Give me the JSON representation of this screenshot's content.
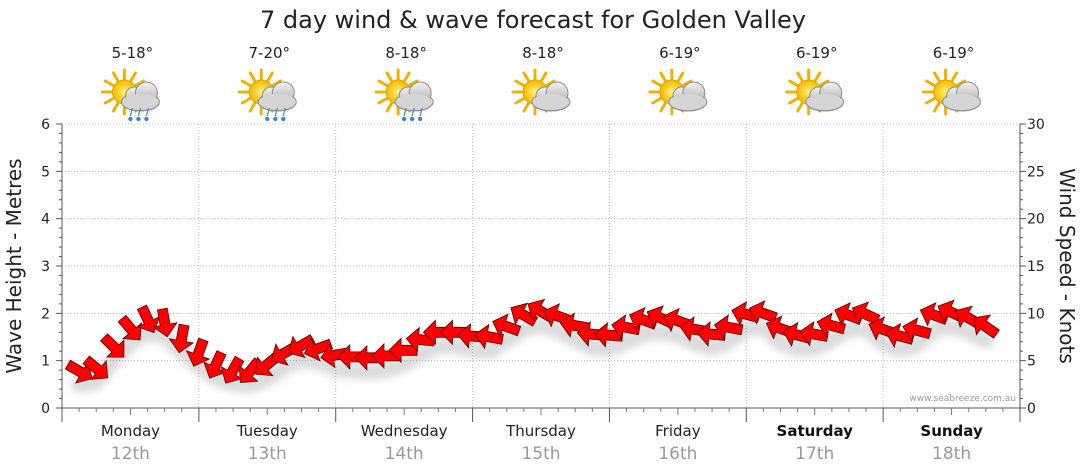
{
  "chart_data": {
    "type": "line",
    "title": "7 day wind & wave forecast for Golden Valley",
    "ylabel_left": "Wave Height - Metres",
    "ylabel_right": "Wind Speed - Knots",
    "ylim_left": [
      0,
      6
    ],
    "ylim_right": [
      0,
      30
    ],
    "yticks_left": [
      "0",
      "1",
      "2",
      "3",
      "4",
      "5",
      "6"
    ],
    "yticks_right": [
      "0",
      "5",
      "10",
      "15",
      "20",
      "25",
      "30"
    ],
    "grid": true,
    "days": [
      {
        "day": "Monday",
        "date": "12th",
        "weekend": false,
        "temp": "5-18°",
        "weather": "partly-cloudy-showers"
      },
      {
        "day": "Tuesday",
        "date": "13th",
        "weekend": false,
        "temp": "7-20°",
        "weather": "partly-cloudy-showers"
      },
      {
        "day": "Wednesday",
        "date": "14th",
        "weekend": false,
        "temp": "8-18°",
        "weather": "partly-cloudy-showers"
      },
      {
        "day": "Thursday",
        "date": "15th",
        "weekend": false,
        "temp": "8-18°",
        "weather": "partly-cloudy"
      },
      {
        "day": "Friday",
        "date": "16th",
        "weekend": false,
        "temp": "6-19°",
        "weather": "partly-cloudy"
      },
      {
        "day": "Saturday",
        "date": "17th",
        "weekend": true,
        "temp": "6-19°",
        "weather": "partly-cloudy"
      },
      {
        "day": "Sunday",
        "date": "18th",
        "weekend": true,
        "temp": "6-19°",
        "weather": "partly-cloudy"
      }
    ],
    "series": [
      {
        "name": "",
        "unit": "knots",
        "color": "#ff0000",
        "marker": "wind-direction-arrow",
        "x_step_hours": 3,
        "values": [
          3.9,
          4.2,
          6.5,
          8.4,
          9.4,
          9.1,
          7.4,
          5.9,
          4.6,
          4.0,
          3.9,
          4.6,
          5.8,
          6.6,
          6.3,
          5.6,
          5.4,
          5.3,
          5.5,
          6.1,
          7.2,
          8.0,
          8.0,
          7.6,
          7.5,
          8.6,
          9.8,
          10.2,
          9.7,
          8.7,
          7.8,
          7.7,
          8.5,
          9.3,
          9.5,
          9.2,
          8.3,
          7.8,
          8.5,
          9.9,
          10.0,
          8.4,
          7.7,
          7.8,
          8.7,
          9.8,
          9.9,
          8.3,
          7.6,
          8.2,
          9.8,
          10.1,
          9.5,
          8.6
        ],
        "directions_deg": [
          300,
          310,
          315,
          320,
          335,
          350,
          10,
          20,
          25,
          30,
          40,
          50,
          60,
          60,
          70,
          80,
          90,
          90,
          90,
          90,
          95,
          90,
          90,
          95,
          100,
          110,
          120,
          120,
          110,
          100,
          95,
          95,
          100,
          110,
          115,
          110,
          100,
          95,
          100,
          105,
          110,
          110,
          105,
          100,
          105,
          110,
          115,
          110,
          105,
          105,
          110,
          115,
          120,
          125
        ]
      }
    ]
  },
  "watermark": "www.seabreeze.com.au"
}
